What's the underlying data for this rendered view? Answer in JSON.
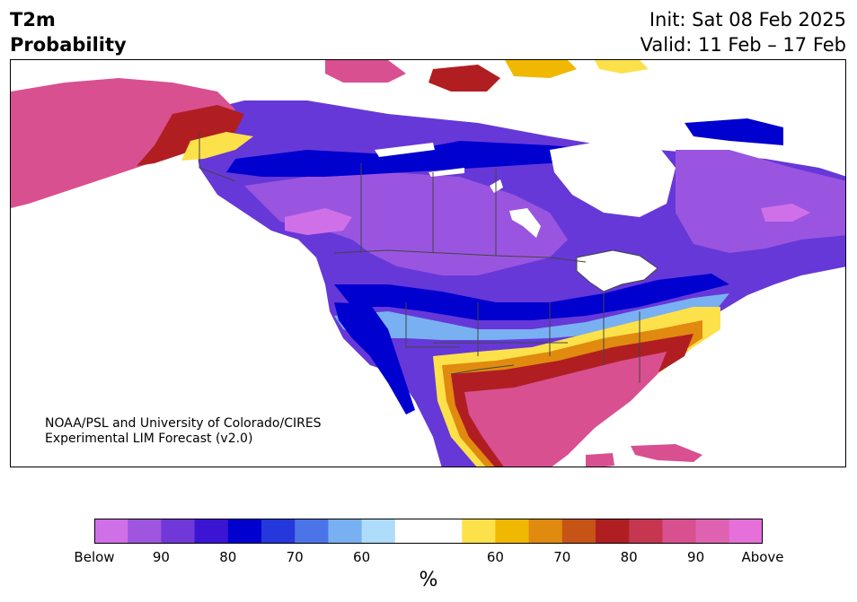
{
  "header": {
    "variable": "T2m",
    "product": "Probability",
    "init": "Init: Sat 08 Feb 2025",
    "valid": "Valid: 11 Feb – 17 Feb"
  },
  "credit": {
    "line1": "NOAA/PSL and University of Colorado/CIRES",
    "line2": "Experimental LIM Forecast (v2.0)"
  },
  "colorbar": {
    "colors": [
      "#d070e8",
      "#9f55e0",
      "#7038d8",
      "#3c14d4",
      "#0000cf",
      "#2438db",
      "#4a74e8",
      "#79b0f2",
      "#aedcfb",
      "#ffffff",
      "#ffffff",
      "#fde14a",
      "#f0b800",
      "#e08a10",
      "#c65416",
      "#b01e22",
      "#c63650",
      "#d85090",
      "#df62b2",
      "#e670da"
    ],
    "tick_labels": [
      "Below",
      "90",
      "80",
      "70",
      "60",
      "60",
      "70",
      "80",
      "90",
      "Above"
    ],
    "unit": "%"
  },
  "palette": {
    "below_strong": "#6638d8",
    "below_mid": "#9a55e0",
    "below_blue": "#0000cf",
    "above_red": "#b01e22",
    "above_pink": "#d85090",
    "neutral": "#ffffff"
  }
}
